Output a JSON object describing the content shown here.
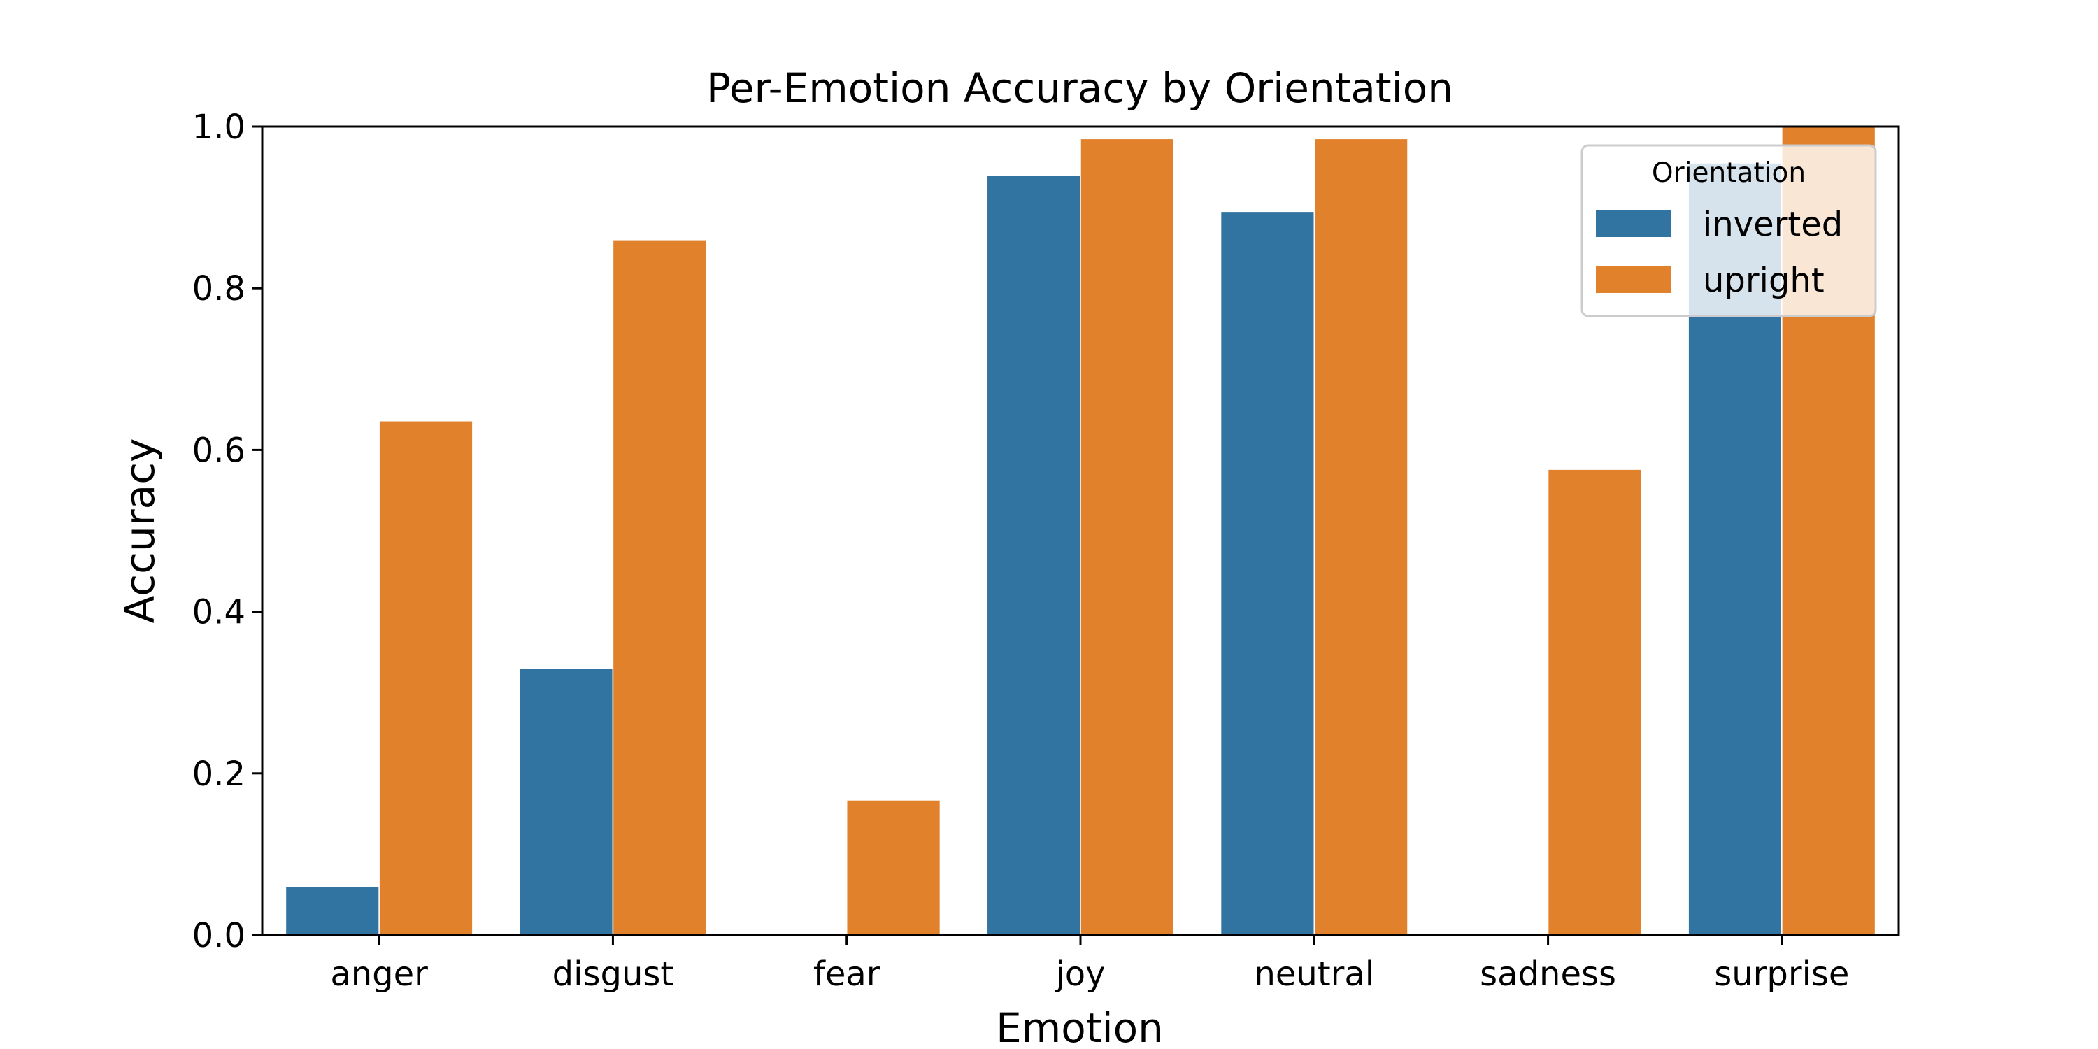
{
  "chart_data": {
    "type": "bar",
    "title": "Per-Emotion Accuracy by Orientation",
    "xlabel": "Emotion",
    "ylabel": "Accuracy",
    "categories": [
      "anger",
      "disgust",
      "fear",
      "joy",
      "neutral",
      "sadness",
      "surprise"
    ],
    "series": [
      {
        "name": "inverted",
        "color": "#3274a1",
        "values": [
          0.06,
          0.33,
          0.0,
          0.94,
          0.895,
          0.0,
          0.955
        ]
      },
      {
        "name": "upright",
        "color": "#e1812c",
        "values": [
          0.636,
          0.86,
          0.167,
          0.985,
          0.985,
          0.576,
          1.0
        ]
      }
    ],
    "ylim": [
      0,
      1.0
    ],
    "yticks": [
      "0.0",
      "0.2",
      "0.4",
      "0.6",
      "0.8",
      "1.0"
    ],
    "grid": false,
    "legend": {
      "title": "Orientation",
      "placement": "top-right"
    }
  }
}
